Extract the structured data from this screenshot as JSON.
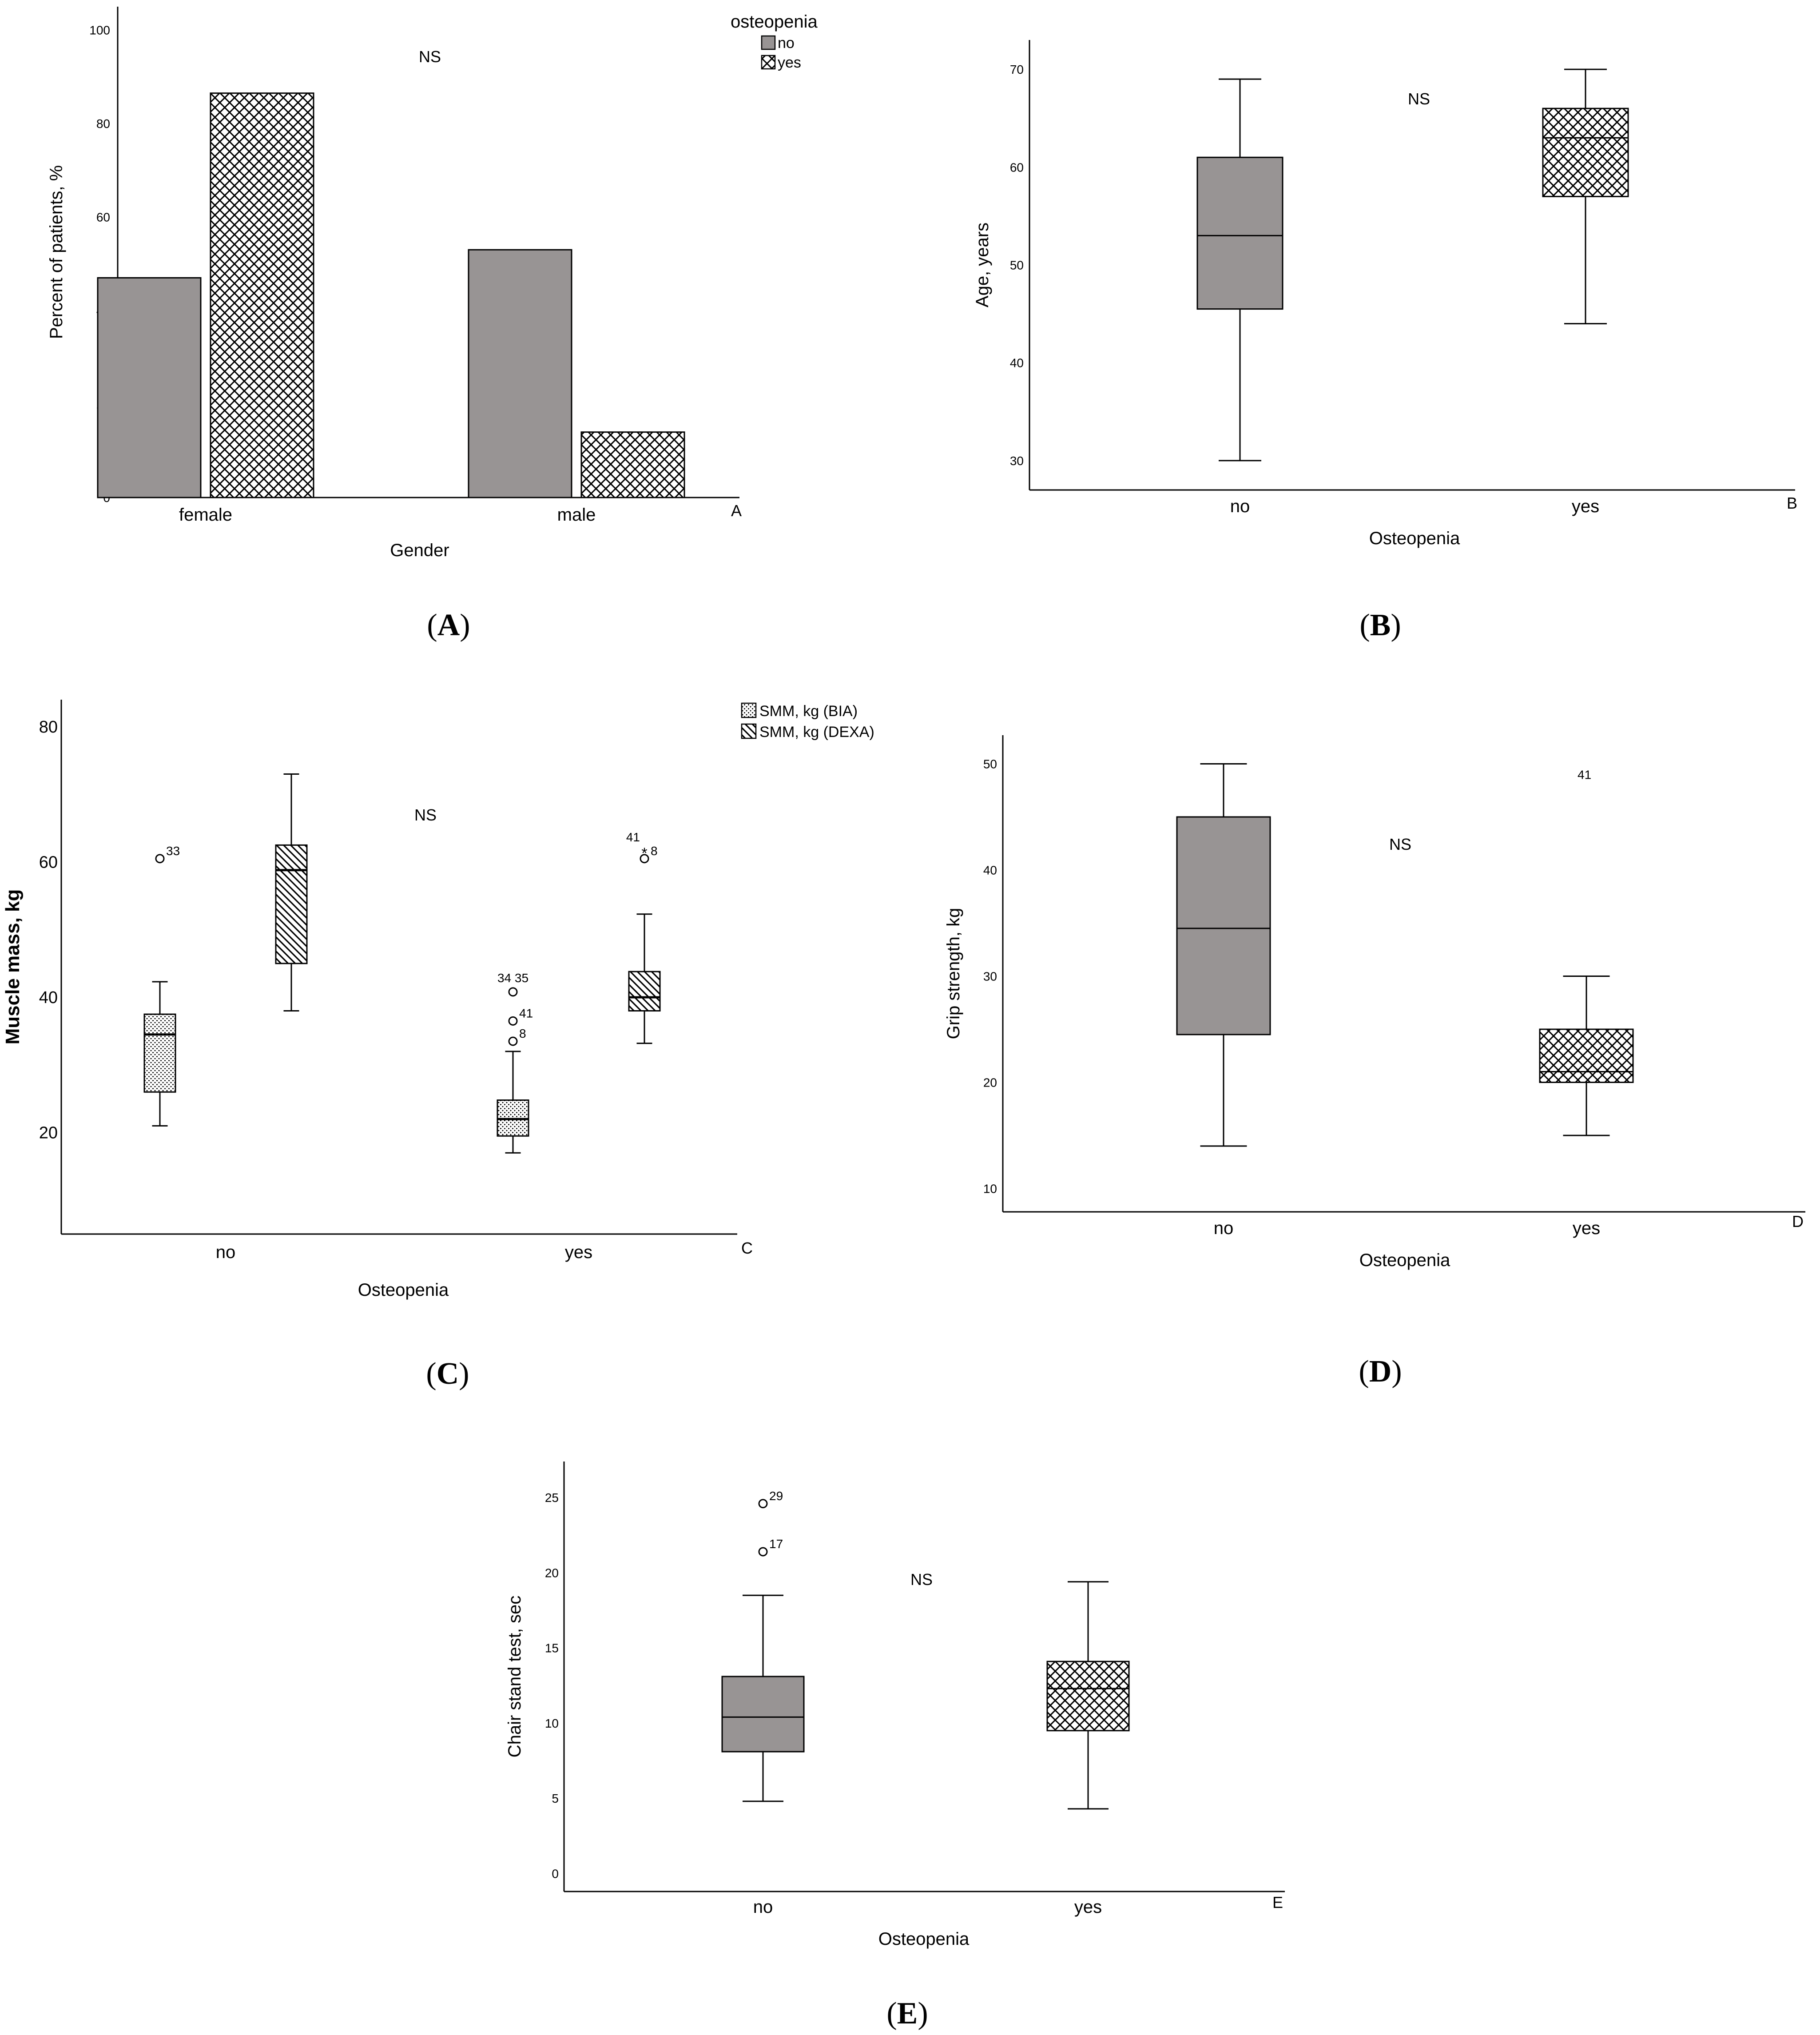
{
  "colors": {
    "gray_fill": "#989494",
    "stroke": "#000000",
    "background": "#ffffff"
  },
  "chart_data": [
    {
      "id": "A",
      "type": "bar",
      "panel_label": "A",
      "corner_label": "A",
      "annotation": "NS",
      "categories": [
        "female",
        "male"
      ],
      "xlabel": "Gender",
      "ylabel": "Percent of patients, %",
      "ylim": [
        0,
        105
      ],
      "yticks": [
        0,
        20,
        40,
        60,
        80,
        100
      ],
      "legend_title": "osteopenia",
      "legend_position": "top-right",
      "series": [
        {
          "name": "no",
          "pattern": "gray",
          "values": [
            47,
            53
          ]
        },
        {
          "name": "yes",
          "pattern": "crosshatch",
          "values": [
            86.5,
            14
          ]
        }
      ]
    },
    {
      "id": "B",
      "type": "box",
      "panel_label": "B",
      "corner_label": "B",
      "annotation": "NS",
      "categories": [
        "no",
        "yes"
      ],
      "xlabel": "Osteopenia",
      "ylabel": "Age, years",
      "ylim": [
        27,
        73
      ],
      "yticks": [
        30,
        40,
        50,
        60,
        70
      ],
      "boxes": [
        {
          "category": "no",
          "pattern": "gray",
          "min": 30,
          "q1": 45.5,
          "median": 53,
          "q3": 61,
          "max": 69,
          "outliers": []
        },
        {
          "category": "yes",
          "pattern": "crosshatch",
          "min": 44,
          "q1": 57,
          "median": 63,
          "q3": 66,
          "max": 70,
          "outliers": []
        }
      ]
    },
    {
      "id": "C",
      "type": "box",
      "panel_label": "C",
      "corner_label": "C",
      "annotation": "NS",
      "categories": [
        "no",
        "yes"
      ],
      "xlabel": "Osteopenia",
      "ylabel": "Muscle mass, kg",
      "ylim": [
        5,
        84
      ],
      "yticks": [
        20,
        40,
        60,
        80
      ],
      "legend_position": "top-right",
      "series": [
        {
          "name": "SMM, kg (BIA)",
          "pattern": "dots"
        },
        {
          "name": "SMM, kg (DEXA)",
          "pattern": "diagonal"
        }
      ],
      "boxes": [
        {
          "category": "no",
          "series": "SMM, kg (BIA)",
          "pattern": "dots",
          "min": 21,
          "q1": 26,
          "median": 34.5,
          "q3": 37.5,
          "max": 42.3,
          "outliers": [
            {
              "value": 60.5,
              "label": "33",
              "marker": "circle"
            }
          ]
        },
        {
          "category": "no",
          "series": "SMM, kg (DEXA)",
          "pattern": "diagonal",
          "min": 38,
          "q1": 45,
          "median": 58.8,
          "q3": 62.5,
          "max": 73,
          "outliers": []
        },
        {
          "category": "yes",
          "series": "SMM, kg (BIA)",
          "pattern": "dots",
          "min": 17,
          "q1": 19.5,
          "median": 22,
          "q3": 24.8,
          "max": 32,
          "outliers": [
            {
              "value": 40.8,
              "label": "34 35",
              "marker": "circle"
            },
            {
              "value": 36.5,
              "label": "41",
              "marker": "circle"
            },
            {
              "value": 33.5,
              "label": "8",
              "marker": "circle"
            }
          ]
        },
        {
          "category": "yes",
          "series": "SMM, kg (DEXA)",
          "pattern": "diagonal",
          "min": 33.2,
          "q1": 38,
          "median": 40,
          "q3": 43.8,
          "max": 52.3,
          "outliers": [
            {
              "value": 62,
              "label": "41",
              "marker": "star"
            },
            {
              "value": 60.5,
              "label": "8",
              "marker": "circle"
            }
          ]
        }
      ]
    },
    {
      "id": "D",
      "type": "box",
      "panel_label": "D",
      "corner_label": "D",
      "annotation": "NS",
      "categories": [
        "no",
        "yes"
      ],
      "xlabel": "Osteopenia",
      "ylabel": "Grip strength, kg",
      "ylim": [
        7.8,
        52.7
      ],
      "yticks": [
        10,
        20,
        30,
        40,
        50
      ],
      "boxes": [
        {
          "category": "no",
          "pattern": "gray",
          "min": 14,
          "q1": 24.5,
          "median": 34.5,
          "q3": 45,
          "max": 50,
          "outliers": []
        },
        {
          "category": "yes",
          "pattern": "crosshatch",
          "min": 15,
          "q1": 20,
          "median": 21,
          "q3": 25,
          "max": 30,
          "outliers": [
            {
              "value": 49,
              "label": "41",
              "marker": "none"
            }
          ]
        }
      ]
    },
    {
      "id": "E",
      "type": "box",
      "panel_label": "E",
      "corner_label": "E",
      "annotation": "NS",
      "categories": [
        "no",
        "yes"
      ],
      "xlabel": "Osteopenia",
      "ylabel": "Chair stand test, sec",
      "ylim": [
        -1.2,
        27.4
      ],
      "yticks": [
        0,
        5,
        10,
        15,
        20,
        25
      ],
      "boxes": [
        {
          "category": "no",
          "pattern": "gray",
          "min": 4.8,
          "q1": 8.1,
          "median": 10.4,
          "q3": 13.1,
          "max": 18.5,
          "outliers": [
            {
              "value": 24.6,
              "label": "29",
              "marker": "circle"
            },
            {
              "value": 21.4,
              "label": "17",
              "marker": "circle"
            }
          ]
        },
        {
          "category": "yes",
          "pattern": "crosshatch",
          "min": 4.3,
          "q1": 9.5,
          "median": 12.3,
          "q3": 14.1,
          "max": 19.4,
          "outliers": []
        }
      ]
    }
  ]
}
